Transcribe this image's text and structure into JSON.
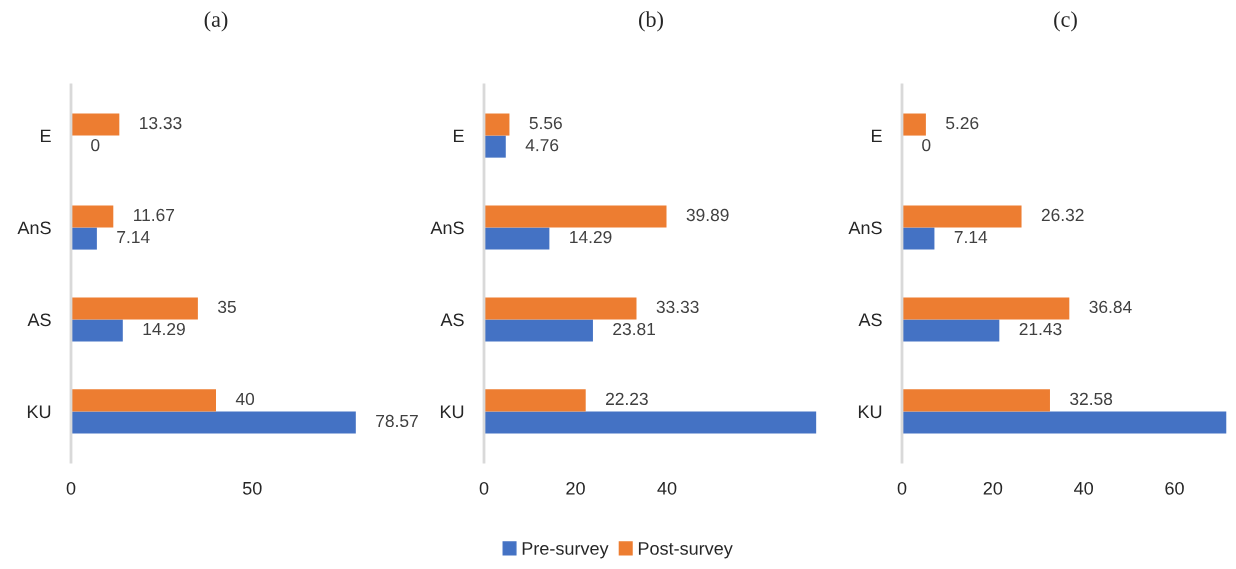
{
  "chart_data": [
    {
      "type": "bar",
      "orientation": "horizontal",
      "title": "(a)",
      "categories": [
        "E",
        "AnS",
        "AS",
        "KU"
      ],
      "xlim": [
        0,
        80
      ],
      "xticks": [
        0,
        50
      ],
      "grid": false,
      "legend": "bottom",
      "series": [
        {
          "name": "Pre-survey",
          "color": "#4472c4",
          "values": [
            0,
            7.14,
            14.29,
            78.57
          ],
          "value_labels": [
            "0",
            "7.14",
            "14.29",
            "78.57"
          ]
        },
        {
          "name": "Post-survey",
          "color": "#ed7d31",
          "values": [
            13.33,
            11.67,
            35,
            40
          ],
          "value_labels": [
            "13.33",
            "11.67",
            "35",
            "40"
          ]
        }
      ]
    },
    {
      "type": "bar",
      "orientation": "horizontal",
      "title": "(b)",
      "categories": [
        "E",
        "AnS",
        "AS",
        "KU"
      ],
      "xlim": [
        0,
        73
      ],
      "xticks": [
        0,
        20,
        40
      ],
      "grid": false,
      "legend": "bottom",
      "series": [
        {
          "name": "Pre-survey",
          "color": "#4472c4",
          "values": [
            4.76,
            14.29,
            23.81,
            72.6
          ],
          "value_labels": [
            "4.76",
            "14.29",
            "23.81",
            null
          ]
        },
        {
          "name": "Post-survey",
          "color": "#ed7d31",
          "values": [
            5.56,
            39.89,
            33.33,
            22.23
          ],
          "value_labels": [
            "5.56",
            "39.89",
            "33.33",
            "22.23"
          ]
        }
      ]
    },
    {
      "type": "bar",
      "orientation": "horizontal",
      "title": "(c)",
      "categories": [
        "E",
        "AnS",
        "AS",
        "KU"
      ],
      "xlim": [
        0,
        72
      ],
      "xticks": [
        0,
        20,
        40,
        60
      ],
      "grid": false,
      "legend": "bottom",
      "series": [
        {
          "name": "Pre-survey",
          "color": "#4472c4",
          "values": [
            0,
            7.14,
            21.43,
            71.4
          ],
          "value_labels": [
            "0",
            "7.14",
            "21.43",
            null
          ]
        },
        {
          "name": "Post-survey",
          "color": "#ed7d31",
          "values": [
            5.26,
            26.32,
            36.84,
            32.58
          ],
          "value_labels": [
            "5.26",
            "26.32",
            "36.84",
            "32.58"
          ]
        }
      ]
    }
  ]
}
